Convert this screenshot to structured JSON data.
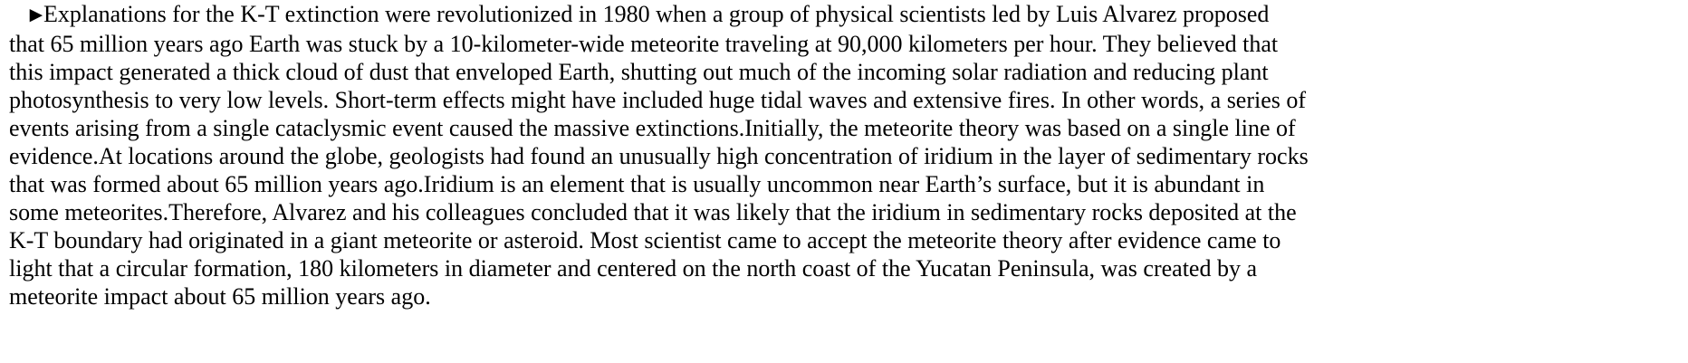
{
  "passage": {
    "marker": "►",
    "lines": [
      "Explanations for the K-T extinction were revolutionized in 1980 when a group of physical scientists led by Luis Alvarez proposed",
      "that 65 million years ago Earth was stuck by a 10-kilometer-wide meteorite traveling at 90,000 kilometers per hour. They believed that",
      "this impact generated a thick cloud of dust that enveloped Earth, shutting out much of the incoming solar radiation and reducing plant",
      "photosynthesis to very low levels. Short-term effects might have included huge tidal waves and extensive fires. In other words, a series of",
      "events arising from a single cataclysmic event caused the massive extinctions.Initially, the meteorite theory was based on a single line of",
      "evidence.At locations around the globe, geologists had found an unusually high concentration of iridium in the layer of sedimentary rocks",
      "that was formed about 65 million years ago.Iridium is an element that is usually uncommon near Earth’s surface, but it is abundant in",
      "some meteorites.Therefore, Alvarez and his colleagues concluded that it was likely that the iridium in sedimentary rocks deposited at the",
      "K-T boundary had originated in a giant meteorite or asteroid. Most scientist came to accept the meteorite theory after evidence came to",
      "light that a circular formation, 180 kilometers in diameter and centered on the north coast of the Yucatan Peninsula, was created by a",
      "meteorite impact about 65 million years ago."
    ]
  }
}
